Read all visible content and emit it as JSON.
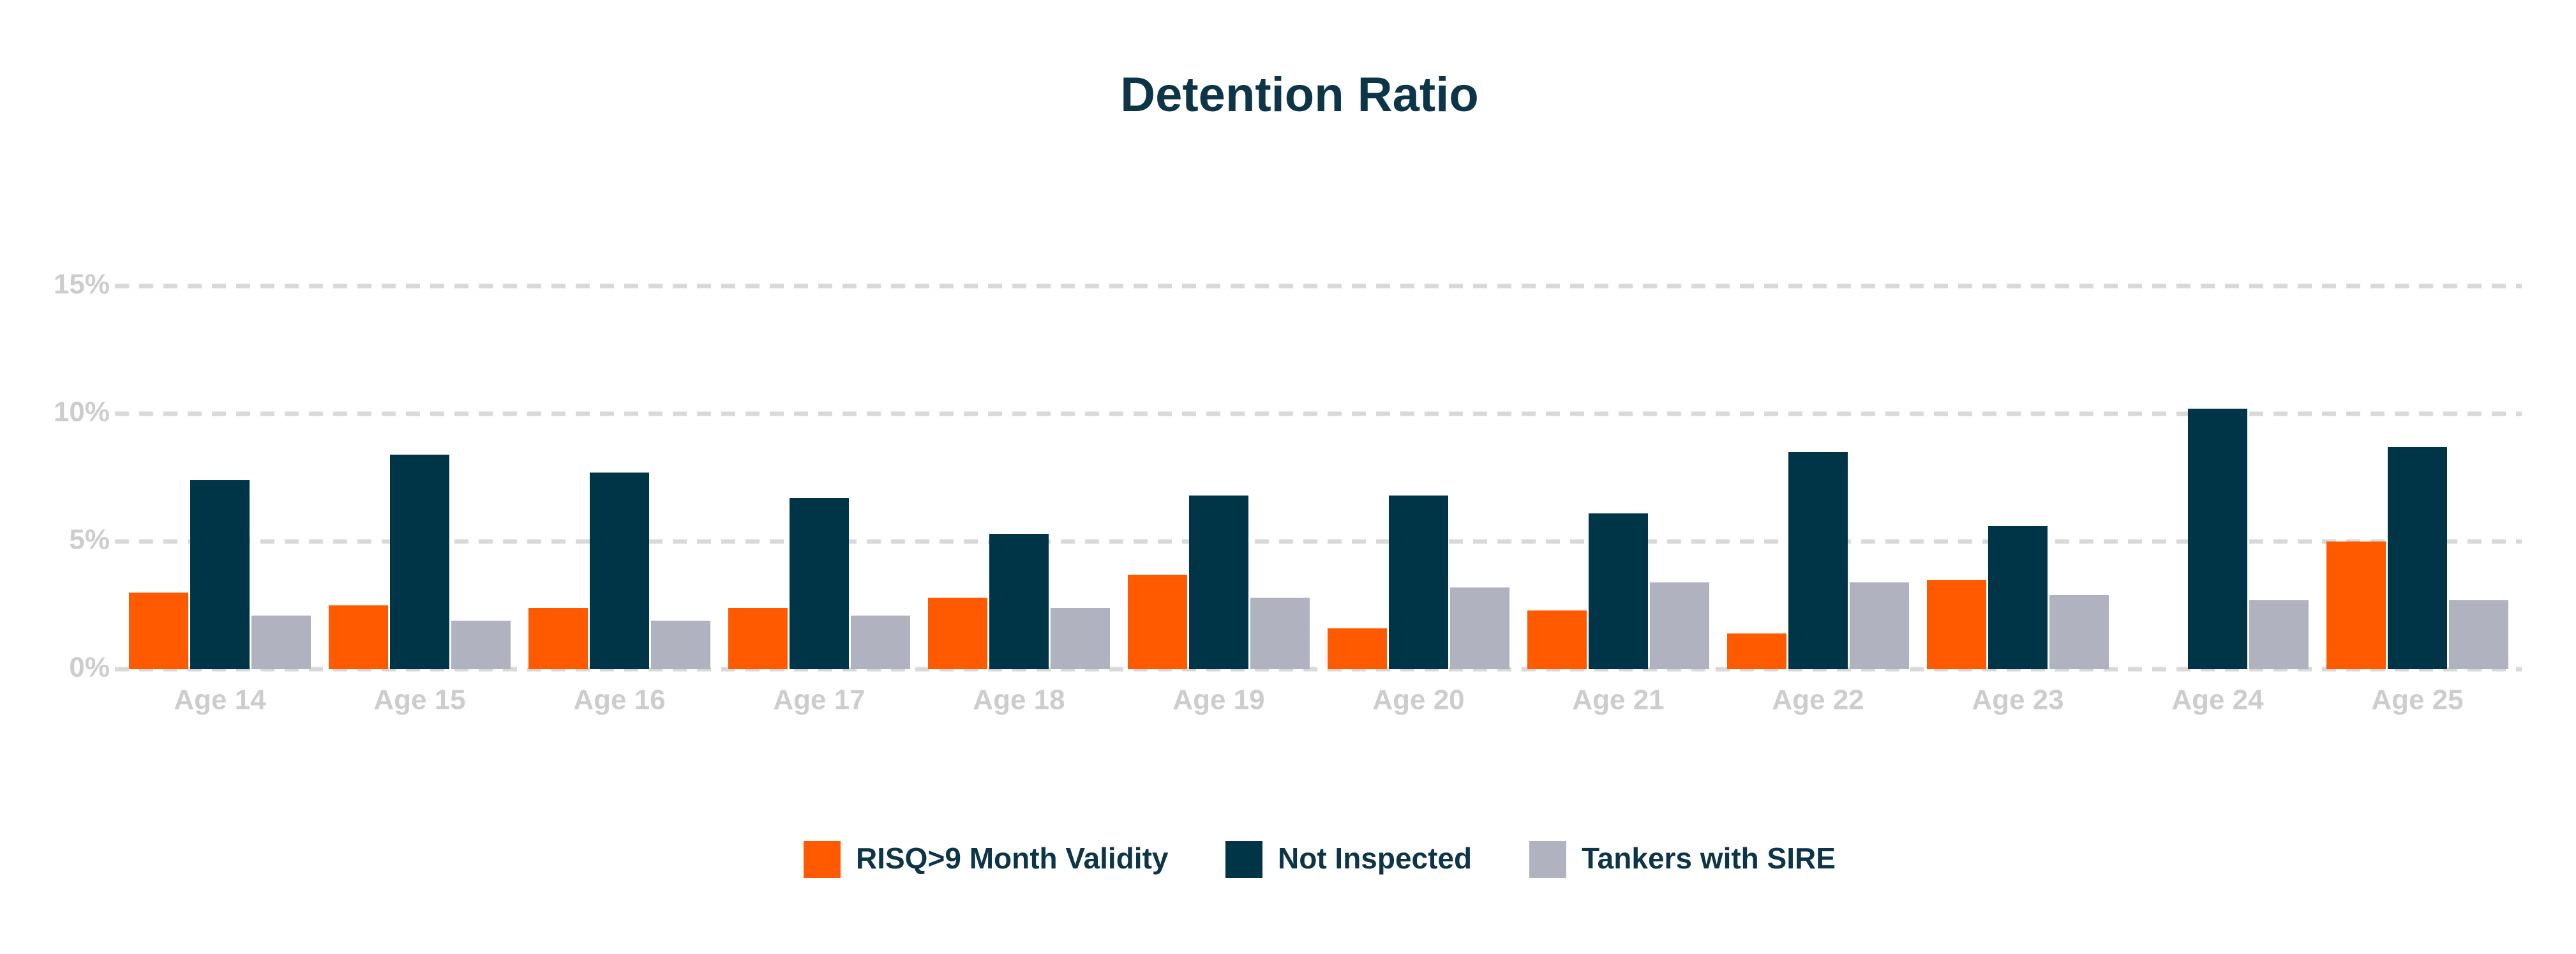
{
  "chart_data": {
    "type": "bar",
    "title": "Detention Ratio",
    "categories": [
      "Age 14",
      "Age 15",
      "Age 16",
      "Age 17",
      "Age 18",
      "Age 19",
      "Age 20",
      "Age 21",
      "Age 22",
      "Age 23",
      "Age 24",
      "Age 25"
    ],
    "series": [
      {
        "name": "RISQ>9 Month Validity",
        "color": "#ff5a00",
        "values": [
          3.0,
          2.5,
          2.4,
          2.4,
          2.8,
          3.7,
          1.6,
          2.3,
          1.4,
          3.5,
          0,
          5.0
        ]
      },
      {
        "name": "Not Inspected",
        "color": "#003547",
        "values": [
          7.4,
          8.4,
          7.7,
          6.7,
          5.3,
          6.8,
          6.8,
          6.1,
          8.5,
          5.6,
          10.2,
          8.7
        ]
      },
      {
        "name": "Tankers with SIRE",
        "color": "#b0b3bf",
        "values": [
          2.1,
          1.9,
          1.9,
          2.1,
          2.4,
          2.8,
          3.2,
          3.4,
          3.4,
          2.9,
          2.7,
          2.7
        ]
      }
    ],
    "ylim": [
      0,
      15
    ],
    "yticks": [
      {
        "value": 0,
        "label": "0%"
      },
      {
        "value": 5,
        "label": "5%"
      },
      {
        "value": 10,
        "label": "10%"
      },
      {
        "value": 15,
        "label": "15%"
      }
    ],
    "grid": true,
    "legend": "bottom"
  }
}
